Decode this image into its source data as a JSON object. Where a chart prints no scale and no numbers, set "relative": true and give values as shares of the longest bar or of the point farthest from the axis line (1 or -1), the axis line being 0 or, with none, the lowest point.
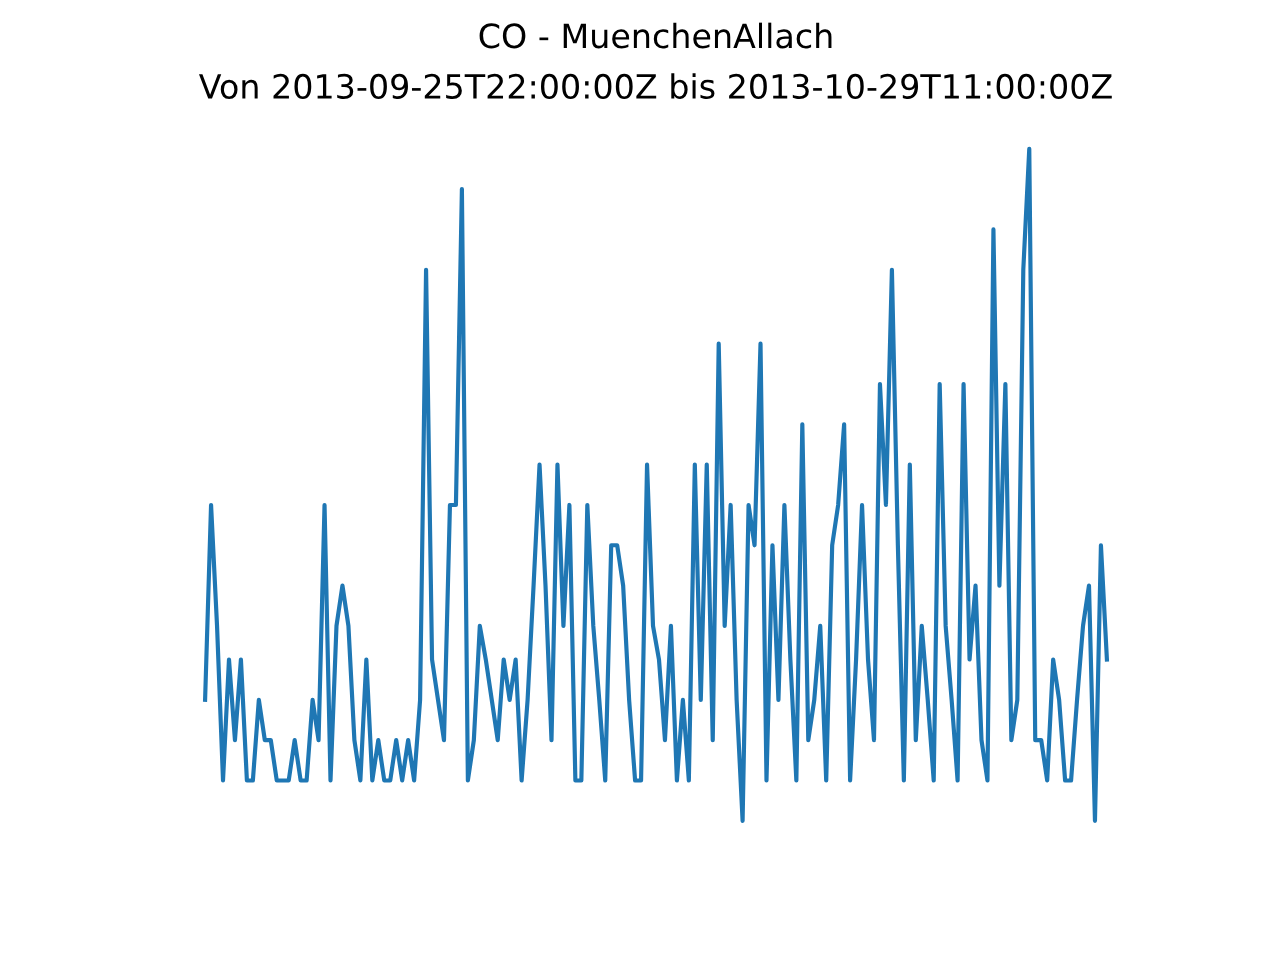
{
  "chart_data": {
    "type": "line",
    "title": "CO - MuenchenAllach",
    "subtitle": "Von 2013-09-25T22:00:00Z bis 2013-10-29T11:00:00Z",
    "relative": true,
    "categories": [
      null,
      null,
      null,
      null,
      null,
      null,
      null,
      null,
      null,
      null,
      null,
      null,
      null,
      null,
      null,
      null,
      null,
      null,
      null,
      null,
      null,
      null,
      null,
      null,
      null,
      null,
      null,
      null,
      null,
      null,
      null,
      null,
      null,
      null,
      null,
      null,
      null,
      null,
      null,
      null,
      null,
      null,
      null,
      null,
      null,
      null,
      null,
      null,
      null,
      null,
      null,
      null,
      null,
      null,
      null,
      null,
      null,
      null,
      null,
      null,
      null,
      null,
      null,
      null,
      null,
      null,
      null,
      null,
      null,
      null,
      null,
      null,
      null,
      null,
      null,
      null,
      null,
      null,
      null,
      null,
      null,
      null,
      null,
      null,
      null,
      null,
      null,
      null,
      null,
      null,
      null,
      null,
      null,
      null,
      null,
      null,
      null,
      null,
      null,
      null,
      null,
      null,
      null,
      null,
      null,
      null,
      null,
      null,
      null,
      null,
      null,
      null,
      null,
      null,
      null,
      null,
      null,
      null,
      null,
      null,
      null,
      null,
      null,
      null,
      null,
      null,
      null,
      null,
      null,
      null,
      null,
      null,
      null,
      null,
      null,
      null,
      null,
      null,
      null,
      null,
      null,
      null,
      null,
      null,
      null,
      null,
      null,
      null,
      null,
      null,
      null,
      null
    ],
    "series": [
      {
        "color": "#1f77b4",
        "values": [
          0.18,
          0.47,
          0.29,
          0.06,
          0.24,
          0.12,
          0.24,
          0.06,
          0.06,
          0.18,
          0.12,
          0.12,
          0.06,
          0.06,
          0.06,
          0.12,
          0.06,
          0.06,
          0.18,
          0.12,
          0.47,
          0.06,
          0.29,
          0.35,
          0.29,
          0.12,
          0.06,
          0.24,
          0.06,
          0.12,
          0.06,
          0.06,
          0.12,
          0.06,
          0.12,
          0.06,
          0.18,
          0.82,
          0.24,
          0.18,
          0.12,
          0.47,
          0.47,
          0.94,
          0.06,
          0.12,
          0.29,
          0.24,
          0.18,
          0.12,
          0.24,
          0.18,
          0.24,
          0.06,
          0.18,
          0.35,
          0.53,
          0.35,
          0.12,
          0.53,
          0.29,
          0.47,
          0.06,
          0.06,
          0.47,
          0.29,
          0.18,
          0.06,
          0.41,
          0.41,
          0.35,
          0.18,
          0.06,
          0.06,
          0.53,
          0.29,
          0.24,
          0.12,
          0.29,
          0.06,
          0.18,
          0.06,
          0.53,
          0.18,
          0.53,
          0.12,
          0.71,
          0.29,
          0.47,
          0.18,
          0,
          0.47,
          0.41,
          0.71,
          0.06,
          0.41,
          0.18,
          0.47,
          0.24,
          0.06,
          0.59,
          0.12,
          0.18,
          0.29,
          0.06,
          0.41,
          0.47,
          0.59,
          0.06,
          0.24,
          0.47,
          0.24,
          0.12,
          0.65,
          0.47,
          0.82,
          0.41,
          0.06,
          0.53,
          0.12,
          0.29,
          0.18,
          0.06,
          0.65,
          0.29,
          0.18,
          0.06,
          0.65,
          0.24,
          0.35,
          0.12,
          0.06,
          0.88,
          0.35,
          0.65,
          0.12,
          0.18,
          0.82,
          1,
          0.12,
          0.12,
          0.06,
          0.24,
          0.18,
          0.06,
          0.06,
          0.18,
          0.29,
          0.35,
          0,
          0.41,
          0.24
        ]
      }
    ]
  }
}
